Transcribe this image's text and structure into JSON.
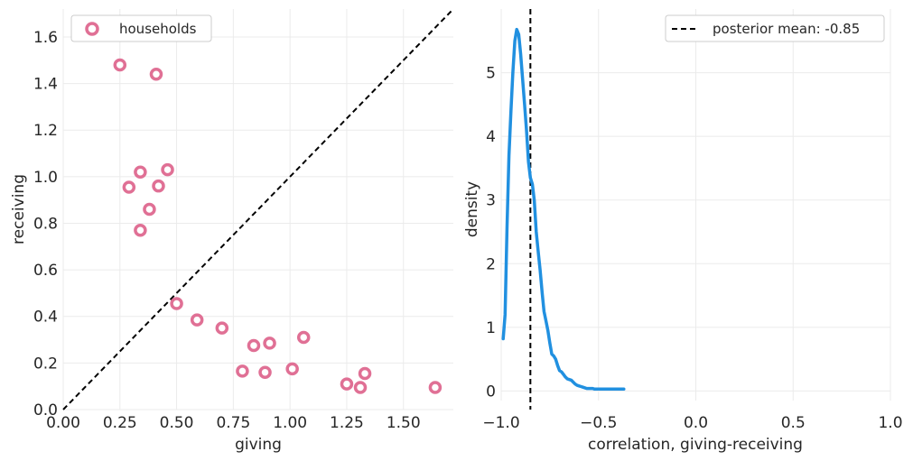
{
  "chart_data": [
    {
      "type": "scatter",
      "xlabel": "giving",
      "ylabel": "receiving",
      "xlim": [
        0,
        1.72
      ],
      "ylim": [
        0,
        1.72
      ],
      "xticks": [
        0.0,
        0.25,
        0.5,
        0.75,
        1.0,
        1.25,
        1.5
      ],
      "xtick_labels": [
        "0.00",
        "0.25",
        "0.50",
        "0.75",
        "1.00",
        "1.25",
        "1.50"
      ],
      "yticks": [
        0.0,
        0.2,
        0.4,
        0.6,
        0.8,
        1.0,
        1.2,
        1.4,
        1.6
      ],
      "ytick_labels": [
        "0.0",
        "0.2",
        "0.4",
        "0.6",
        "0.8",
        "1.0",
        "1.2",
        "1.4",
        "1.6"
      ],
      "grid": true,
      "legend": {
        "label": "households",
        "position": "top-left"
      },
      "series": [
        {
          "name": "households",
          "color": "#e07095",
          "points": [
            {
              "x": 0.25,
              "y": 1.48
            },
            {
              "x": 0.41,
              "y": 1.44
            },
            {
              "x": 0.34,
              "y": 1.02
            },
            {
              "x": 0.46,
              "y": 1.03
            },
            {
              "x": 0.29,
              "y": 0.955
            },
            {
              "x": 0.42,
              "y": 0.96
            },
            {
              "x": 0.38,
              "y": 0.86
            },
            {
              "x": 0.34,
              "y": 0.77
            },
            {
              "x": 0.5,
              "y": 0.455
            },
            {
              "x": 0.59,
              "y": 0.385
            },
            {
              "x": 0.7,
              "y": 0.35
            },
            {
              "x": 0.84,
              "y": 0.275
            },
            {
              "x": 0.91,
              "y": 0.285
            },
            {
              "x": 1.06,
              "y": 0.31
            },
            {
              "x": 0.79,
              "y": 0.165
            },
            {
              "x": 0.89,
              "y": 0.16
            },
            {
              "x": 1.01,
              "y": 0.175
            },
            {
              "x": 1.25,
              "y": 0.11
            },
            {
              "x": 1.31,
              "y": 0.095
            },
            {
              "x": 1.33,
              "y": 0.155
            },
            {
              "x": 1.64,
              "y": 0.095
            }
          ]
        }
      ],
      "reference_line": {
        "style": "dashed",
        "color": "#000000",
        "from": [
          0,
          0
        ],
        "to": [
          1.72,
          1.72
        ]
      }
    },
    {
      "type": "line",
      "xlabel": "correlation, giving-receiving",
      "ylabel": "density",
      "xlim": [
        -1.0,
        1.0
      ],
      "ylim": [
        -0.15,
        6.0
      ],
      "xticks": [
        -1.0,
        -0.5,
        0.0,
        0.5,
        1.0
      ],
      "xtick_labels": [
        "−1.0",
        "−0.5",
        "0.0",
        "0.5",
        "1.0"
      ],
      "yticks": [
        0,
        1,
        2,
        3,
        4,
        5
      ],
      "ytick_labels": [
        "0",
        "1",
        "2",
        "3",
        "4",
        "5"
      ],
      "grid": true,
      "legend": {
        "label": "posterior mean: -0.85",
        "position": "top-right"
      },
      "vline": {
        "x": -0.85,
        "style": "dashed",
        "color": "#000000"
      },
      "series": [
        {
          "name": "density",
          "color": "#2190e0",
          "x": [
            -0.99,
            -0.98,
            -0.97,
            -0.96,
            -0.95,
            -0.94,
            -0.93,
            -0.92,
            -0.91,
            -0.9,
            -0.89,
            -0.88,
            -0.87,
            -0.86,
            -0.85,
            -0.84,
            -0.83,
            -0.82,
            -0.81,
            -0.8,
            -0.79,
            -0.78,
            -0.77,
            -0.76,
            -0.75,
            -0.74,
            -0.73,
            -0.72,
            -0.71,
            -0.7,
            -0.69,
            -0.68,
            -0.67,
            -0.66,
            -0.65,
            -0.64,
            -0.63,
            -0.62,
            -0.61,
            -0.6,
            -0.59,
            -0.58,
            -0.57,
            -0.56,
            -0.55,
            -0.54,
            -0.53,
            -0.52,
            -0.51,
            -0.5,
            -0.49,
            -0.48,
            -0.47,
            -0.46,
            -0.45,
            -0.44,
            -0.43,
            -0.42,
            -0.41,
            -0.4,
            -0.39,
            -0.38,
            -0.37
          ],
          "values": [
            0.82,
            1.2,
            2.6,
            3.7,
            4.4,
            5.0,
            5.5,
            5.68,
            5.6,
            5.3,
            4.9,
            4.5,
            4.1,
            3.6,
            3.35,
            3.25,
            3.0,
            2.5,
            2.2,
            1.9,
            1.55,
            1.25,
            1.1,
            0.95,
            0.75,
            0.58,
            0.55,
            0.5,
            0.4,
            0.32,
            0.3,
            0.26,
            0.22,
            0.19,
            0.18,
            0.17,
            0.14,
            0.11,
            0.09,
            0.08,
            0.07,
            0.06,
            0.05,
            0.04,
            0.04,
            0.04,
            0.04,
            0.03,
            0.03,
            0.03,
            0.03,
            0.03,
            0.03,
            0.03,
            0.03,
            0.03,
            0.03,
            0.03,
            0.03,
            0.03,
            0.03,
            0.03,
            0.03
          ]
        }
      ]
    }
  ]
}
